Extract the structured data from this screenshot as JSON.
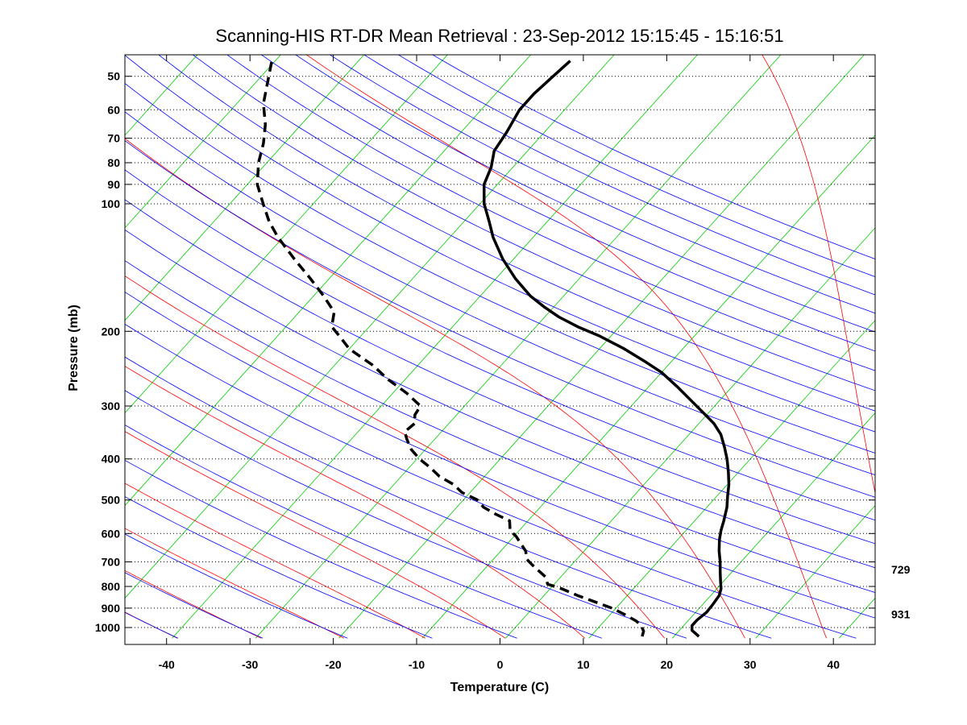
{
  "chart_data": {
    "type": "skew-t",
    "title": "Scanning-HIS RT-DR Mean Retrieval : 23-Sep-2012 15:15:45 - 15:16:51",
    "xlabel": "Temperature (C)",
    "ylabel": "Pressure (mb)",
    "xlim": [
      -45,
      45
    ],
    "ylim": [
      1050,
      45
    ],
    "x_ticks": [
      -40,
      -30,
      -20,
      -10,
      0,
      10,
      20,
      30,
      40
    ],
    "x_tick_labels": [
      "-40",
      "-30",
      "-20",
      "-10",
      "0",
      "10",
      "20",
      "30",
      "40"
    ],
    "y_ticks": [
      50,
      60,
      70,
      80,
      90,
      100,
      200,
      300,
      400,
      500,
      600,
      700,
      800,
      900,
      1000
    ],
    "y_tick_labels": [
      "50",
      "60",
      "70",
      "80",
      "90",
      "100",
      "200",
      "300",
      "400",
      "500",
      "600",
      "700",
      "800",
      "900",
      "1000"
    ],
    "grid": "horizontal dotted at pressure ticks",
    "right_annotations": [
      {
        "pressure": 729,
        "label": "729"
      },
      {
        "pressure": 931,
        "label": "931"
      }
    ],
    "background_lines": {
      "dry_adiabats_color": "#0000ff",
      "moist_adiabats_color": "#ff0000",
      "isotherms_color": "#00cc00",
      "isotherm_values": [
        -120,
        -110,
        -100,
        -90,
        -80,
        -70,
        -60,
        -50,
        -40,
        -30,
        -20,
        -10,
        0,
        10,
        20,
        30,
        40
      ],
      "theta_values": [
        220,
        230,
        240,
        250,
        260,
        270,
        280,
        290,
        300,
        310,
        320,
        330,
        340,
        350,
        360,
        370,
        380,
        390,
        400,
        410,
        420,
        430,
        440,
        450,
        460,
        470,
        480,
        490
      ],
      "moist_theta_values": [
        220,
        230,
        240,
        250,
        260,
        270,
        280,
        290,
        300,
        310,
        320,
        330,
        340,
        350,
        360,
        370,
        380,
        390,
        400,
        410,
        420,
        430,
        440,
        450,
        460,
        470,
        480,
        490
      ]
    },
    "series": [
      {
        "name": "temperature",
        "style": "solid",
        "color": "#000000",
        "points": [
          [
            1050,
            23.0
          ],
          [
            1015,
            21.5
          ],
          [
            990,
            21.0
          ],
          [
            960,
            21.0
          ],
          [
            920,
            21.3
          ],
          [
            880,
            21.2
          ],
          [
            840,
            21.0
          ],
          [
            810,
            20.5
          ],
          [
            780,
            19.7
          ],
          [
            740,
            18.6
          ],
          [
            700,
            17.5
          ],
          [
            660,
            16.2
          ],
          [
            620,
            15.0
          ],
          [
            590,
            14.2
          ],
          [
            560,
            13.5
          ],
          [
            520,
            12.4
          ],
          [
            490,
            11.3
          ],
          [
            460,
            10.2
          ],
          [
            430,
            8.8
          ],
          [
            400,
            7.2
          ],
          [
            375,
            5.6
          ],
          [
            350,
            3.8
          ],
          [
            330,
            1.8
          ],
          [
            310,
            -0.8
          ],
          [
            290,
            -3.6
          ],
          [
            270,
            -6.6
          ],
          [
            250,
            -10.0
          ],
          [
            235,
            -13.3
          ],
          [
            220,
            -17.0
          ],
          [
            205,
            -21.4
          ],
          [
            195,
            -25.0
          ],
          [
            185,
            -28.3
          ],
          [
            175,
            -31.2
          ],
          [
            165,
            -34.0
          ],
          [
            150,
            -37.7
          ],
          [
            135,
            -41.3
          ],
          [
            120,
            -44.8
          ],
          [
            110,
            -47.0
          ],
          [
            100,
            -49.5
          ],
          [
            90,
            -51.6
          ],
          [
            82,
            -52.6
          ],
          [
            75,
            -54.0
          ],
          [
            68,
            -54.5
          ],
          [
            60,
            -55.4
          ],
          [
            55,
            -55.4
          ],
          [
            50,
            -55.0
          ],
          [
            46,
            -54.6
          ]
        ]
      },
      {
        "name": "dewpoint",
        "style": "dashed",
        "color": "#000000",
        "points": [
          [
            1050,
            16.2
          ],
          [
            1020,
            15.8
          ],
          [
            990,
            14.9
          ],
          [
            965,
            13.8
          ],
          [
            930,
            11.6
          ],
          [
            900,
            9.5
          ],
          [
            870,
            6.8
          ],
          [
            840,
            4.0
          ],
          [
            810,
            1.4
          ],
          [
            790,
            -0.8
          ],
          [
            760,
            -1.8
          ],
          [
            740,
            -3.0
          ],
          [
            710,
            -4.8
          ],
          [
            690,
            -6.0
          ],
          [
            660,
            -7.0
          ],
          [
            630,
            -8.6
          ],
          [
            610,
            -9.7
          ],
          [
            590,
            -11.1
          ],
          [
            560,
            -12.2
          ],
          [
            540,
            -14.6
          ],
          [
            520,
            -16.8
          ],
          [
            500,
            -18.3
          ],
          [
            480,
            -21.0
          ],
          [
            460,
            -22.8
          ],
          [
            440,
            -25.4
          ],
          [
            420,
            -27.4
          ],
          [
            400,
            -29.7
          ],
          [
            380,
            -31.7
          ],
          [
            360,
            -33.3
          ],
          [
            345,
            -34.4
          ],
          [
            330,
            -34.1
          ],
          [
            315,
            -35.0
          ],
          [
            300,
            -35.3
          ],
          [
            280,
            -38.3
          ],
          [
            260,
            -42.0
          ],
          [
            240,
            -45.5
          ],
          [
            220,
            -50.0
          ],
          [
            205,
            -52.6
          ],
          [
            195,
            -54.5
          ],
          [
            180,
            -55.8
          ],
          [
            165,
            -58.8
          ],
          [
            150,
            -62.3
          ],
          [
            135,
            -66.3
          ],
          [
            120,
            -70.6
          ],
          [
            110,
            -73.4
          ],
          [
            100,
            -76.0
          ],
          [
            90,
            -78.8
          ],
          [
            80,
            -81.0
          ],
          [
            72,
            -82.5
          ],
          [
            65,
            -84.3
          ],
          [
            58,
            -86.8
          ],
          [
            52,
            -88.5
          ],
          [
            46,
            -90.4
          ]
        ]
      }
    ]
  }
}
